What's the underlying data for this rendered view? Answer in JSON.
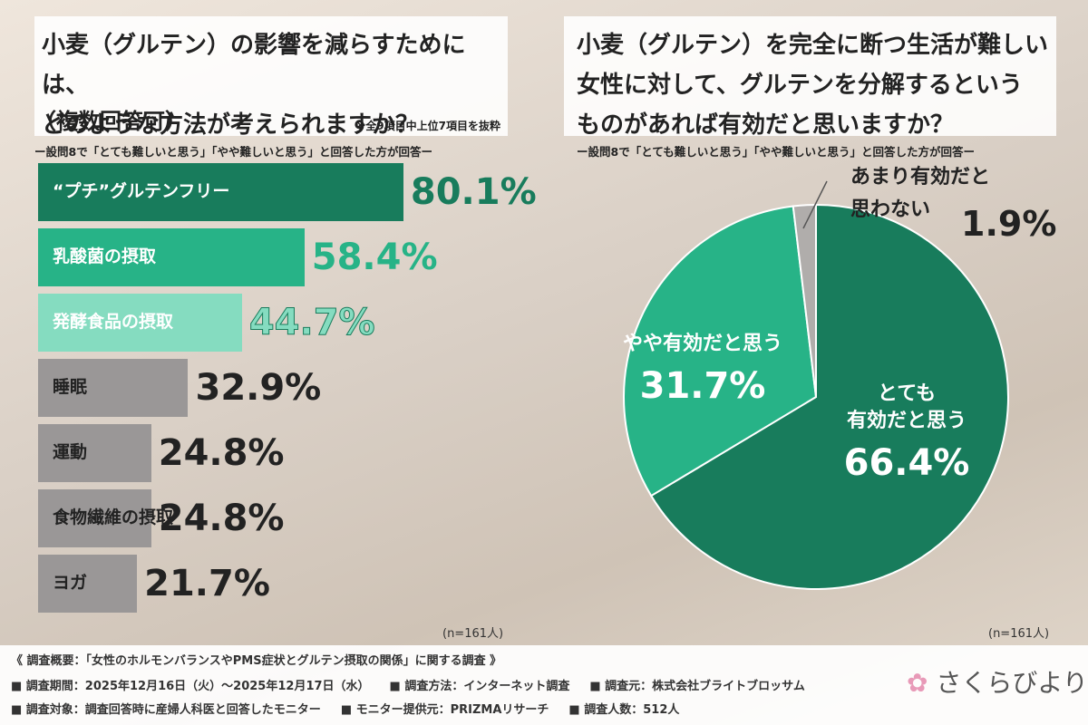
{
  "chart_data": [
    {
      "type": "bar",
      "title": "小麦（グルテン）の影響を減らすためには、\nどのような方法が考えられますか？",
      "subtitle": "（複数回答可）",
      "note": "※全9項目中上位7項目を抜粋",
      "question_note": "ー設問8で「とても難しいと思う」「やや難しいと思う」と回答した方が回答ー",
      "sample": "(n=161人)",
      "categories": [
        "“プチ”グルテンフリー",
        "乳酸菌の摂取",
        "発酵食品の摂取",
        "睡眠",
        "運動",
        "食物繊維の摂取",
        "ヨガ"
      ],
      "values": [
        80.1,
        58.4,
        44.7,
        32.9,
        24.8,
        24.8,
        21.7
      ],
      "value_labels": [
        "80.1%",
        "58.4%",
        "44.7%",
        "32.9%",
        "24.8%",
        "24.8%",
        "21.7%"
      ],
      "colors": [
        "#187c5c",
        "#27b387",
        "#85dcc0",
        "#9a9797",
        "#9a9797",
        "#9a9797",
        "#9a9797"
      ],
      "value_label_colors": [
        "#187c5c",
        "#27b387",
        "#85dcc0",
        "#222222",
        "#222222",
        "#222222",
        "#222222"
      ]
    },
    {
      "type": "pie",
      "title": "小麦（グルテン）を完全に断つ生活が難しい\n女性に対して、グルテンを分解するという\nものがあれば有効だと思いますか？",
      "question_note": "ー設問8で「とても難しいと思う」「やや難しいと思う」と回答した方が回答ー",
      "sample": "(n=161人)",
      "categories": [
        "とても\n有効だと思う",
        "やや有効だと思う",
        "あまり有効だと\n思わない"
      ],
      "values": [
        66.4,
        31.7,
        1.9
      ],
      "value_labels": [
        "66.4%",
        "31.7%",
        "1.9%"
      ],
      "colors": [
        "#187c5c",
        "#27b387",
        "#b0adab"
      ]
    }
  ],
  "footer": {
    "heading": "《 調査概要：「女性のホルモンバランスやPMS症状とグルテン摂取の関係」に関する調査 》",
    "rows": [
      [
        "■ 調査期間：2025年12月16日（火）～2025年12月17日（水）",
        "■ 調査方法：インターネット調査",
        "■ 調査元：株式会社ブライトブロッサム"
      ],
      [
        "■ 調査対象：調査回答時に産婦人科医と回答したモニター",
        "■ モニター提供元：PRIZMAリサーチ",
        "■ 調査人数：512人"
      ]
    ],
    "logo": "さくらびより"
  }
}
